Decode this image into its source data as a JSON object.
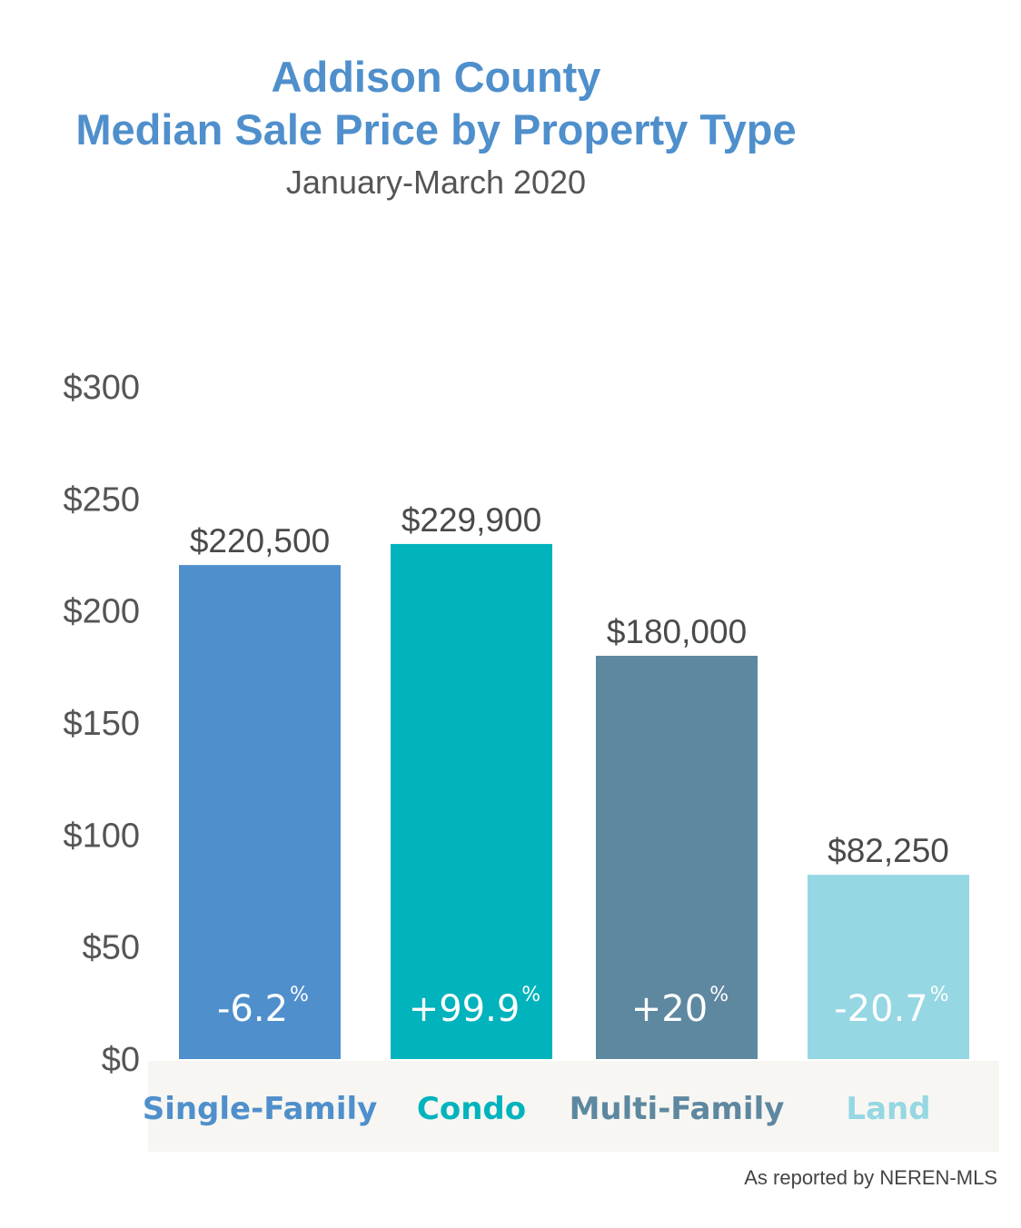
{
  "title_line1": "Addison County",
  "title_line2": "Median Sale Price by Property Type",
  "subtitle": "January-March 2020",
  "source": "As reported by NEREN-MLS",
  "chart_data": {
    "type": "bar",
    "categories": [
      "Single-Family",
      "Condo",
      "Multi-Family",
      "Land"
    ],
    "values": [
      220500,
      229900,
      180000,
      82250
    ],
    "value_labels": [
      "$220,500",
      "$229,900",
      "$180,000",
      "$82,250"
    ],
    "changes": [
      "-6.2",
      "+99.9",
      "+20",
      "-20.7"
    ],
    "change_suffix": "%",
    "colors": [
      "#4f8fcc",
      "#00b3bd",
      "#5e87a0",
      "#95d7e3"
    ],
    "yticks": [
      0,
      50,
      100,
      150,
      200,
      250,
      300
    ],
    "ytick_labels": [
      "$0",
      "$50",
      "$100",
      "$150",
      "$200",
      "$250",
      "$300"
    ],
    "ylim": [
      0,
      300
    ],
    "y_unit": "thousands",
    "category_band_color": "#f7f6f2",
    "grid": false
  }
}
